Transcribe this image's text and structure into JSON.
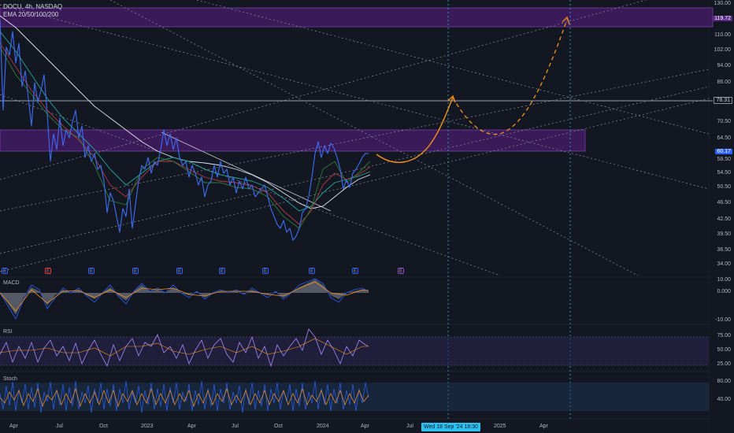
{
  "header": {
    "symbol": "DOCU, 4h, NASDAQ",
    "indicator": "EMA 20/50/100/200"
  },
  "price_axis": {
    "labels": [
      "130.00",
      "110.00",
      "102.00",
      "94.00",
      "86.00",
      "78.31",
      "70.50",
      "64.50",
      "60.17",
      "58.50",
      "54.50",
      "50.50",
      "46.50",
      "42.50",
      "39.50",
      "36.50",
      "34.00"
    ],
    "target_tag": "119.72",
    "level_tag": "78.31",
    "last_price_tag": "60.17",
    "last_price_color": "#2962ff"
  },
  "time_axis": {
    "labels": [
      "Apr",
      "Jul",
      "Oct",
      "2023",
      "Apr",
      "Jul",
      "Oct",
      "2024",
      "Apr",
      "Jul",
      "Wed 18 Sep '24  18:30",
      "2025",
      "Apr"
    ]
  },
  "events": {
    "labels": [
      "E",
      "E",
      "E",
      "E",
      "E",
      "E",
      "E",
      "E",
      "E",
      "E"
    ],
    "highlight": "E"
  },
  "panes": {
    "macd": {
      "title": "MACD",
      "labels": [
        "10.00",
        "0.000",
        "-10.00"
      ]
    },
    "rsi": {
      "title": "RSI",
      "labels": [
        "75.00",
        "50.00",
        "25.00"
      ]
    },
    "stoch": {
      "title": "Stoch",
      "labels": [
        "80.00",
        "40.00"
      ]
    }
  },
  "colors": {
    "background": "#131722",
    "price_line": "#2962ff",
    "zone_fill": "#6a2a9e",
    "projection": "#f7931a",
    "ema_200": "#e0e3eb",
    "rsi_line": "#a78bfa",
    "crosshair": "#2ec0f0"
  }
}
